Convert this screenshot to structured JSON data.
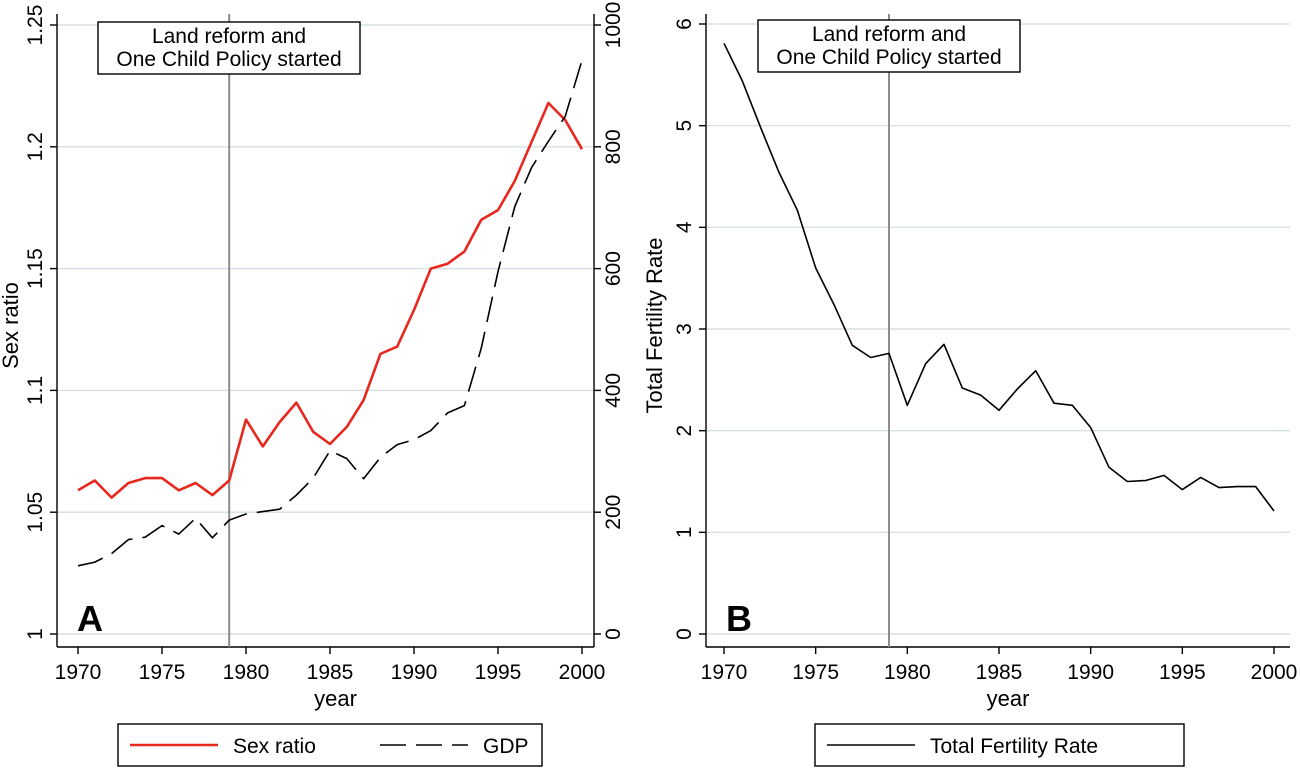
{
  "chart_data": [
    {
      "type": "line",
      "panel_label": "A",
      "xlabel": "year",
      "ylabel": "Sex ratio",
      "y2label": "",
      "xlim": [
        1970,
        2000
      ],
      "ylim": [
        1,
        1.25
      ],
      "y2lim": [
        0,
        1000
      ],
      "x_ticks": [
        1970,
        1975,
        1980,
        1985,
        1990,
        1995,
        2000
      ],
      "y_ticks": [
        "1",
        "1.05",
        "1.1",
        "1.15",
        "1.2",
        "1.25"
      ],
      "y2_ticks": [
        "0",
        "200",
        "400",
        "600",
        "800",
        "1000"
      ],
      "grid": true,
      "event_line_x": 1979,
      "annotation": [
        "Land reform and",
        "One Child Policy started"
      ],
      "x": [
        1970,
        1971,
        1972,
        1973,
        1974,
        1975,
        1976,
        1977,
        1978,
        1979,
        1980,
        1981,
        1982,
        1983,
        1984,
        1985,
        1986,
        1987,
        1988,
        1989,
        1990,
        1991,
        1992,
        1993,
        1994,
        1995,
        1996,
        1997,
        1998,
        1999,
        2000
      ],
      "series": [
        {
          "name": "Sex ratio",
          "axis": "left",
          "style": "solid",
          "color": "#e8281e",
          "values": [
            1.059,
            1.063,
            1.056,
            1.062,
            1.064,
            1.064,
            1.059,
            1.062,
            1.057,
            1.063,
            1.088,
            1.077,
            1.087,
            1.095,
            1.083,
            1.078,
            1.085,
            1.096,
            1.115,
            1.118,
            1.133,
            1.15,
            1.152,
            1.157,
            1.17,
            1.174,
            1.186,
            1.202,
            1.218,
            1.211,
            1.199
          ]
        },
        {
          "name": "GDP",
          "axis": "right",
          "style": "dashed",
          "color": "#000000",
          "values": [
            112,
            118,
            132,
            155,
            159,
            178,
            164,
            190,
            158,
            187,
            197,
            201,
            205,
            228,
            256,
            301,
            288,
            255,
            290,
            311,
            319,
            334,
            363,
            375,
            469,
            595,
            702,
            766,
            809,
            850,
            942
          ]
        }
      ],
      "legend_position": "bottom"
    },
    {
      "type": "line",
      "panel_label": "B",
      "xlabel": "year",
      "ylabel": "Total Fertility Rate",
      "xlim": [
        1970,
        2000
      ],
      "ylim": [
        0,
        6
      ],
      "x_ticks": [
        1970,
        1975,
        1980,
        1985,
        1990,
        1995,
        2000
      ],
      "y_ticks": [
        "0",
        "1",
        "2",
        "3",
        "4",
        "5",
        "6"
      ],
      "grid": true,
      "event_line_x": 1979,
      "annotation": [
        "Land reform and",
        "One Child Policy started"
      ],
      "x": [
        1970,
        1971,
        1972,
        1973,
        1974,
        1975,
        1976,
        1977,
        1978,
        1979,
        1980,
        1981,
        1982,
        1983,
        1984,
        1985,
        1986,
        1987,
        1988,
        1989,
        1990,
        1991,
        1992,
        1993,
        1994,
        1995,
        1996,
        1997,
        1998,
        1999,
        2000
      ],
      "series": [
        {
          "name": "Total Fertility Rate",
          "style": "solid",
          "color": "#000000",
          "values": [
            5.81,
            5.44,
            4.98,
            4.54,
            4.17,
            3.6,
            3.24,
            2.84,
            2.72,
            2.76,
            2.25,
            2.66,
            2.85,
            2.42,
            2.35,
            2.2,
            2.41,
            2.59,
            2.27,
            2.25,
            2.03,
            1.64,
            1.5,
            1.51,
            1.56,
            1.42,
            1.54,
            1.44,
            1.45,
            1.45,
            1.21
          ]
        }
      ],
      "legend_position": "bottom"
    }
  ]
}
